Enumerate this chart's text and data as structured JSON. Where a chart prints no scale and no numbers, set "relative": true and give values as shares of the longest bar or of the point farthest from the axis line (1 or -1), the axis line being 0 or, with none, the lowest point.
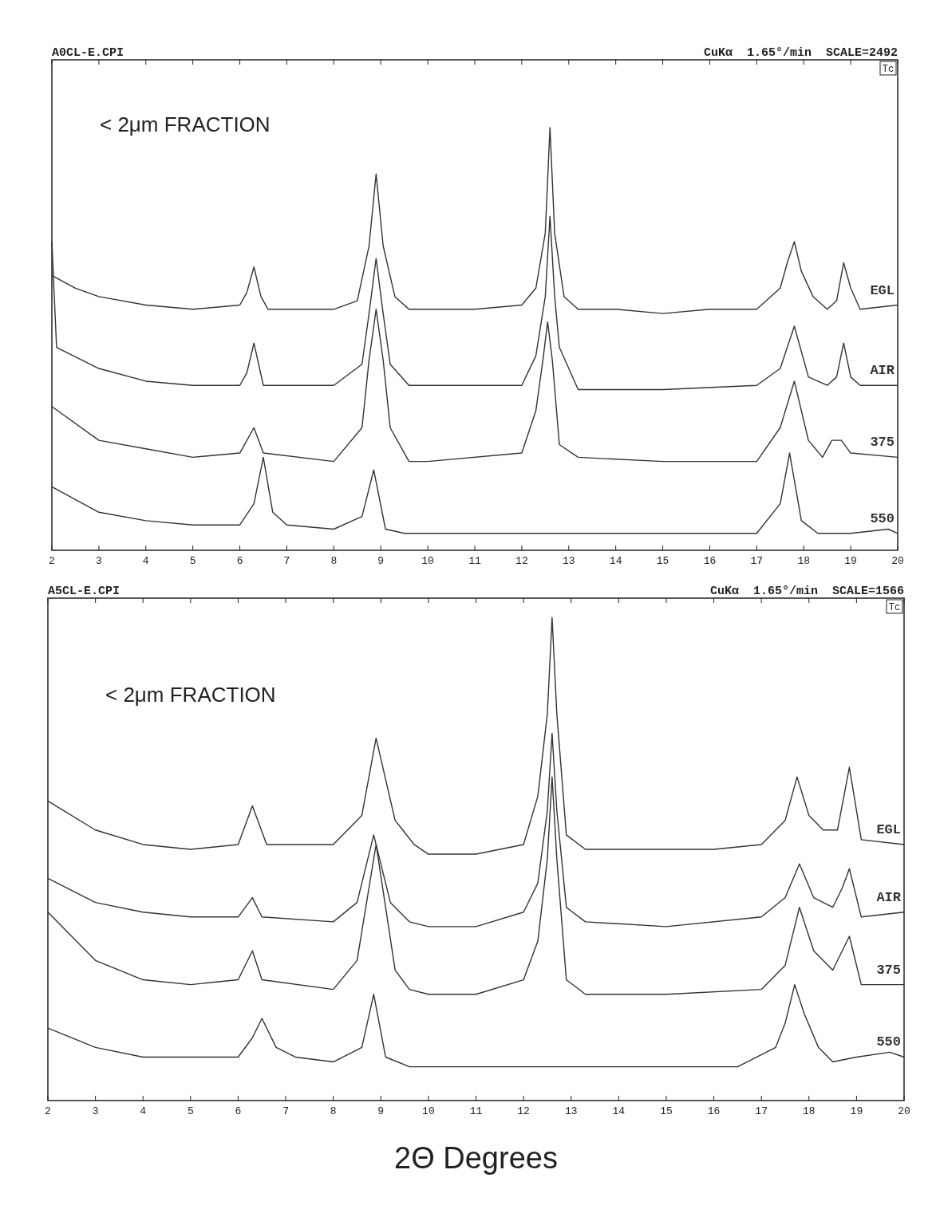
{
  "chart_data": [
    {
      "type": "line",
      "title": "A0CL-E.CPI",
      "subtitle": "CuKα  1.65°/min  SCALE=2492",
      "annotations": [
        "< 2μm FRACTION",
        "Tc"
      ],
      "relative": true,
      "xlim": [
        2,
        20
      ],
      "xticks": [
        2,
        3,
        4,
        5,
        6,
        7,
        8,
        9,
        10,
        11,
        12,
        13,
        14,
        15,
        16,
        17,
        18,
        19,
        20
      ],
      "legend": false,
      "marker": "none",
      "series": [
        {
          "name": "EGL",
          "color": "#333333",
          "x": [
            2,
            2.5,
            3,
            4,
            5,
            6,
            6.15,
            6.3,
            6.45,
            6.6,
            7,
            8,
            8.5,
            8.75,
            8.9,
            9.05,
            9.3,
            9.6,
            10,
            11,
            12,
            12.3,
            12.5,
            12.6,
            12.7,
            12.9,
            13.2,
            14,
            15,
            16,
            17,
            17.5,
            17.65,
            17.8,
            17.95,
            18.2,
            18.5,
            18.7,
            18.85,
            19,
            19.2,
            20
          ],
          "values": [
            0.65,
            0.62,
            0.6,
            0.58,
            0.57,
            0.58,
            0.61,
            0.67,
            0.6,
            0.57,
            0.57,
            0.57,
            0.59,
            0.72,
            0.89,
            0.72,
            0.6,
            0.57,
            0.57,
            0.57,
            0.58,
            0.62,
            0.75,
            1.0,
            0.75,
            0.6,
            0.57,
            0.57,
            0.56,
            0.57,
            0.57,
            0.62,
            0.68,
            0.73,
            0.66,
            0.6,
            0.57,
            0.59,
            0.68,
            0.62,
            0.57,
            0.58
          ]
        },
        {
          "name": "AIR",
          "color": "#333333",
          "x": [
            2,
            2.1,
            3,
            4,
            5,
            6,
            6.15,
            6.3,
            6.5,
            8,
            8.6,
            8.75,
            8.9,
            9.05,
            9.2,
            9.6,
            10,
            12,
            12.3,
            12.5,
            12.6,
            12.7,
            12.8,
            13.2,
            15,
            17,
            17.5,
            17.8,
            18.1,
            18.5,
            18.7,
            18.85,
            19,
            19.2,
            20
          ],
          "values": [
            0.73,
            0.48,
            0.43,
            0.4,
            0.39,
            0.39,
            0.42,
            0.49,
            0.39,
            0.39,
            0.44,
            0.56,
            0.69,
            0.56,
            0.44,
            0.39,
            0.39,
            0.39,
            0.46,
            0.6,
            0.79,
            0.6,
            0.48,
            0.38,
            0.38,
            0.39,
            0.43,
            0.53,
            0.41,
            0.39,
            0.41,
            0.49,
            0.41,
            0.39,
            0.39
          ]
        },
        {
          "name": "375",
          "color": "#333333",
          "x": [
            2,
            3,
            4,
            5,
            6,
            6.3,
            6.5,
            8,
            8.6,
            8.75,
            8.9,
            9.05,
            9.2,
            9.6,
            10,
            12,
            12.3,
            12.45,
            12.55,
            12.65,
            12.8,
            13.2,
            15,
            17,
            17.5,
            17.8,
            18.1,
            18.4,
            18.6,
            18.8,
            19,
            20
          ],
          "values": [
            0.34,
            0.26,
            0.24,
            0.22,
            0.23,
            0.29,
            0.23,
            0.21,
            0.29,
            0.45,
            0.57,
            0.45,
            0.29,
            0.21,
            0.21,
            0.23,
            0.33,
            0.45,
            0.54,
            0.45,
            0.25,
            0.22,
            0.21,
            0.21,
            0.29,
            0.4,
            0.26,
            0.22,
            0.26,
            0.26,
            0.23,
            0.22
          ]
        },
        {
          "name": "550",
          "color": "#333333",
          "x": [
            2,
            3,
            4,
            5,
            6,
            6.3,
            6.5,
            6.7,
            7,
            8,
            8.6,
            8.85,
            9.1,
            9.5,
            10,
            12,
            15,
            17,
            17.5,
            17.7,
            17.95,
            18.3,
            19,
            19.8,
            20
          ],
          "values": [
            0.15,
            0.09,
            0.07,
            0.06,
            0.06,
            0.11,
            0.22,
            0.09,
            0.06,
            0.05,
            0.08,
            0.19,
            0.05,
            0.04,
            0.04,
            0.04,
            0.04,
            0.04,
            0.11,
            0.23,
            0.07,
            0.04,
            0.04,
            0.05,
            0.04
          ]
        }
      ]
    },
    {
      "type": "line",
      "title": "A5CL-E.CPI",
      "subtitle": "CuKα  1.65°/min  SCALE=1566",
      "xlabel": "2Θ Degrees",
      "annotations": [
        "< 2μm FRACTION",
        "Tc"
      ],
      "relative": true,
      "xlim": [
        2,
        20
      ],
      "xticks": [
        2,
        3,
        4,
        5,
        6,
        7,
        8,
        9,
        10,
        11,
        12,
        13,
        14,
        15,
        16,
        17,
        18,
        19,
        20
      ],
      "legend": false,
      "marker": "none",
      "series": [
        {
          "name": "EGL",
          "color": "#333333",
          "x": [
            2,
            3,
            4,
            5,
            6,
            6.3,
            6.6,
            8,
            8.6,
            8.9,
            9.3,
            9.7,
            10,
            11,
            12,
            12.3,
            12.5,
            12.6,
            12.7,
            12.9,
            13.3,
            15,
            16,
            17,
            17.5,
            17.75,
            18,
            18.3,
            18.6,
            18.85,
            19.1,
            20
          ],
          "values": [
            0.62,
            0.56,
            0.53,
            0.52,
            0.53,
            0.61,
            0.53,
            0.53,
            0.59,
            0.75,
            0.58,
            0.53,
            0.51,
            0.51,
            0.53,
            0.63,
            0.8,
            1.0,
            0.8,
            0.55,
            0.52,
            0.52,
            0.52,
            0.53,
            0.58,
            0.67,
            0.59,
            0.56,
            0.56,
            0.69,
            0.54,
            0.53
          ]
        },
        {
          "name": "AIR",
          "color": "#333333",
          "x": [
            2,
            3,
            4,
            5,
            6,
            6.3,
            6.5,
            8,
            8.5,
            8.85,
            9.2,
            9.6,
            10,
            11,
            12,
            12.3,
            12.5,
            12.6,
            12.7,
            12.9,
            13.3,
            15,
            17,
            17.5,
            17.8,
            18.1,
            18.5,
            18.7,
            18.85,
            19.1,
            20
          ],
          "values": [
            0.46,
            0.41,
            0.39,
            0.38,
            0.38,
            0.42,
            0.38,
            0.37,
            0.41,
            0.55,
            0.41,
            0.37,
            0.36,
            0.36,
            0.39,
            0.45,
            0.6,
            0.76,
            0.6,
            0.4,
            0.37,
            0.36,
            0.38,
            0.42,
            0.49,
            0.42,
            0.4,
            0.44,
            0.48,
            0.38,
            0.39
          ]
        },
        {
          "name": "375",
          "color": "#333333",
          "x": [
            2,
            3,
            4,
            5,
            6,
            6.3,
            6.5,
            8,
            8.5,
            8.9,
            9.3,
            9.6,
            10,
            11,
            12,
            12.3,
            12.5,
            12.6,
            12.7,
            12.9,
            13.3,
            15,
            17,
            17.5,
            17.8,
            18.1,
            18.5,
            18.85,
            19.1,
            20
          ],
          "values": [
            0.39,
            0.29,
            0.25,
            0.24,
            0.25,
            0.31,
            0.25,
            0.23,
            0.29,
            0.53,
            0.27,
            0.23,
            0.22,
            0.22,
            0.25,
            0.33,
            0.5,
            0.67,
            0.5,
            0.25,
            0.22,
            0.22,
            0.23,
            0.28,
            0.4,
            0.31,
            0.27,
            0.34,
            0.24,
            0.24
          ]
        },
        {
          "name": "550",
          "color": "#333333",
          "x": [
            2,
            3,
            4,
            5,
            6,
            6.3,
            6.5,
            6.8,
            7.2,
            8,
            8.6,
            8.85,
            9.1,
            9.6,
            10,
            11,
            13,
            15,
            16.5,
            17.3,
            17.5,
            17.7,
            17.9,
            18.2,
            18.5,
            19,
            19.7,
            20
          ],
          "values": [
            0.15,
            0.11,
            0.09,
            0.09,
            0.09,
            0.13,
            0.17,
            0.11,
            0.09,
            0.08,
            0.11,
            0.22,
            0.09,
            0.07,
            0.07,
            0.07,
            0.07,
            0.07,
            0.07,
            0.11,
            0.16,
            0.24,
            0.18,
            0.11,
            0.08,
            0.09,
            0.1,
            0.09
          ]
        }
      ]
    }
  ]
}
